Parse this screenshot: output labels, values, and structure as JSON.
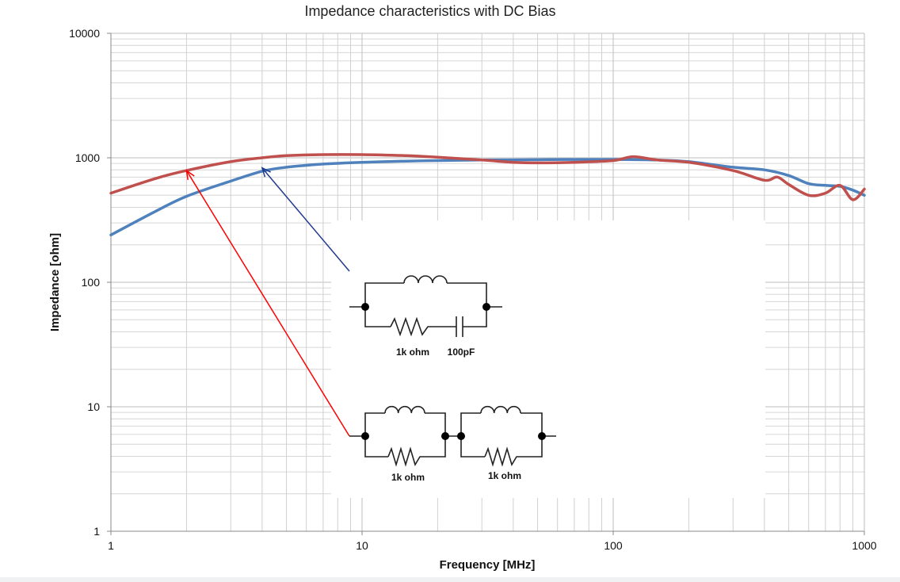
{
  "chart_data": {
    "type": "line",
    "title": "Impedance characteristics with DC Bias",
    "xlabel": "Frequency [MHz]",
    "ylabel": "Impedance [ohm]",
    "xscale": "log",
    "yscale": "log",
    "xlim": [
      1,
      1000
    ],
    "ylim": [
      1,
      10000
    ],
    "xticks": [
      {
        "value": 1,
        "label": "1"
      },
      {
        "value": 10,
        "label": "10"
      },
      {
        "value": 100,
        "label": "100"
      },
      {
        "value": 1000,
        "label": "1000"
      }
    ],
    "yticks": [
      {
        "value": 1,
        "label": "1"
      },
      {
        "value": 10,
        "label": "10"
      },
      {
        "value": 100,
        "label": "100"
      },
      {
        "value": 1000,
        "label": "1000"
      },
      {
        "value": 10000,
        "label": "10000"
      }
    ],
    "grid": true,
    "series": [
      {
        "color": "#4f81bd",
        "points": [
          [
            1,
            240
          ],
          [
            1.5,
            370
          ],
          [
            2,
            490
          ],
          [
            3,
            650
          ],
          [
            4,
            780
          ],
          [
            5,
            840
          ],
          [
            7,
            890
          ],
          [
            10,
            920
          ],
          [
            15,
            940
          ],
          [
            20,
            950
          ],
          [
            30,
            960
          ],
          [
            50,
            965
          ],
          [
            70,
            970
          ],
          [
            100,
            970
          ],
          [
            150,
            960
          ],
          [
            200,
            930
          ],
          [
            300,
            840
          ],
          [
            400,
            800
          ],
          [
            500,
            720
          ],
          [
            600,
            620
          ],
          [
            700,
            600
          ],
          [
            800,
            590
          ],
          [
            900,
            550
          ],
          [
            1000,
            500
          ]
        ]
      },
      {
        "color": "#c0504d",
        "points": [
          [
            1,
            520
          ],
          [
            1.5,
            680
          ],
          [
            2,
            790
          ],
          [
            3,
            930
          ],
          [
            4,
            1000
          ],
          [
            5,
            1040
          ],
          [
            7,
            1060
          ],
          [
            10,
            1060
          ],
          [
            15,
            1040
          ],
          [
            20,
            1010
          ],
          [
            30,
            960
          ],
          [
            40,
            920
          ],
          [
            50,
            910
          ],
          [
            70,
            920
          ],
          [
            100,
            950
          ],
          [
            120,
            1020
          ],
          [
            150,
            960
          ],
          [
            200,
            920
          ],
          [
            300,
            790
          ],
          [
            400,
            660
          ],
          [
            450,
            700
          ],
          [
            500,
            610
          ],
          [
            600,
            500
          ],
          [
            700,
            520
          ],
          [
            800,
            600
          ],
          [
            900,
            460
          ],
          [
            1000,
            560
          ]
        ]
      }
    ],
    "annotations": [
      {
        "type": "arrow",
        "color": "#1f3b8c",
        "from_data": [
          4,
          830
        ],
        "target_series": 0
      },
      {
        "type": "arrow",
        "color": "#ff0000",
        "from_data": [
          2,
          790
        ],
        "target_series": 1
      }
    ]
  },
  "circuits": {
    "blue_circuit": {
      "resistor_label": "1k ohm",
      "capacitor_label": "100pF"
    },
    "red_circuit": {
      "left_resistor_label": "1k ohm",
      "right_resistor_label": "1k ohm"
    }
  }
}
